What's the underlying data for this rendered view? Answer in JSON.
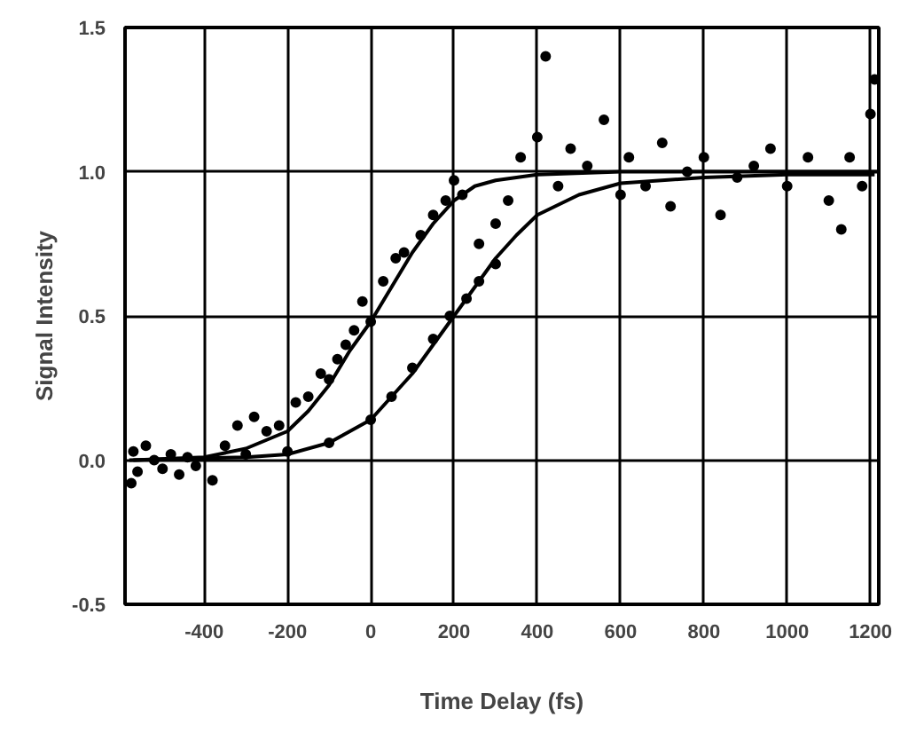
{
  "chart_data": {
    "type": "scatter",
    "xlabel": "Time Delay (fs)",
    "ylabel": "Signal Intensity",
    "xlim": [
      -590,
      1220
    ],
    "ylim": [
      -0.5,
      1.5
    ],
    "xticks": [
      -400,
      -200,
      0,
      200,
      400,
      600,
      800,
      1000,
      1200
    ],
    "yticks": [
      -0.5,
      {
        "value": 0,
        "label": "0.0"
      },
      0.5,
      {
        "value": 1,
        "label": "1.0"
      },
      1.5
    ],
    "grid": true,
    "series": [
      {
        "marker": "circle",
        "color": "#000000",
        "x": [
          -575,
          -570,
          -560,
          -540,
          -520,
          -500,
          -480,
          -460,
          -440,
          -420,
          -380,
          -350,
          -320,
          -280,
          -250,
          -220,
          -180,
          -150,
          -120,
          -100,
          -80,
          -60,
          -40,
          -20,
          0,
          30,
          60,
          80,
          120,
          150,
          180,
          200,
          220,
          260,
          300,
          330,
          360,
          400,
          420,
          450,
          480,
          520,
          560,
          600,
          620,
          660,
          700,
          720,
          760,
          800,
          840,
          880,
          920,
          960,
          1000,
          1050,
          1100,
          1130,
          1150,
          1180,
          1200,
          1210,
          -300,
          -200,
          -100,
          0,
          50,
          100,
          150,
          190,
          230,
          260,
          300
        ],
        "values": [
          -0.08,
          0.03,
          -0.04,
          0.05,
          0.0,
          -0.03,
          0.02,
          -0.05,
          0.01,
          -0.02,
          -0.07,
          0.05,
          0.12,
          0.15,
          0.1,
          0.12,
          0.2,
          0.22,
          0.3,
          0.28,
          0.35,
          0.4,
          0.45,
          0.55,
          0.48,
          0.62,
          0.7,
          0.72,
          0.78,
          0.85,
          0.9,
          0.97,
          0.92,
          0.75,
          0.82,
          0.9,
          1.05,
          1.12,
          1.4,
          0.95,
          1.08,
          1.02,
          1.18,
          0.92,
          1.05,
          0.95,
          1.1,
          0.88,
          1.0,
          1.05,
          0.85,
          0.98,
          1.02,
          1.08,
          0.95,
          1.05,
          0.9,
          0.8,
          1.05,
          0.95,
          1.2,
          1.32,
          0.02,
          0.03,
          0.06,
          0.14,
          0.22,
          0.32,
          0.42,
          0.5,
          0.56,
          0.62,
          0.68
        ]
      },
      {
        "type": "line",
        "marker": "none",
        "color": "#000000",
        "x": [
          -570,
          -400,
          -300,
          -200,
          -150,
          -100,
          -50,
          0,
          50,
          100,
          150,
          200,
          250,
          300,
          400,
          600,
          1220
        ],
        "values": [
          0.0,
          0.01,
          0.04,
          0.1,
          0.17,
          0.26,
          0.38,
          0.48,
          0.6,
          0.72,
          0.82,
          0.9,
          0.95,
          0.97,
          0.99,
          1.0,
          1.0
        ]
      },
      {
        "type": "line",
        "marker": "none",
        "color": "#000000",
        "x": [
          -580,
          -300,
          -200,
          -100,
          0,
          50,
          100,
          150,
          200,
          250,
          300,
          350,
          400,
          500,
          600,
          800,
          1000,
          1210
        ],
        "values": [
          0.0,
          0.01,
          0.02,
          0.06,
          0.14,
          0.22,
          0.3,
          0.4,
          0.5,
          0.6,
          0.7,
          0.78,
          0.85,
          0.92,
          0.96,
          0.98,
          0.99,
          0.99
        ]
      }
    ]
  }
}
